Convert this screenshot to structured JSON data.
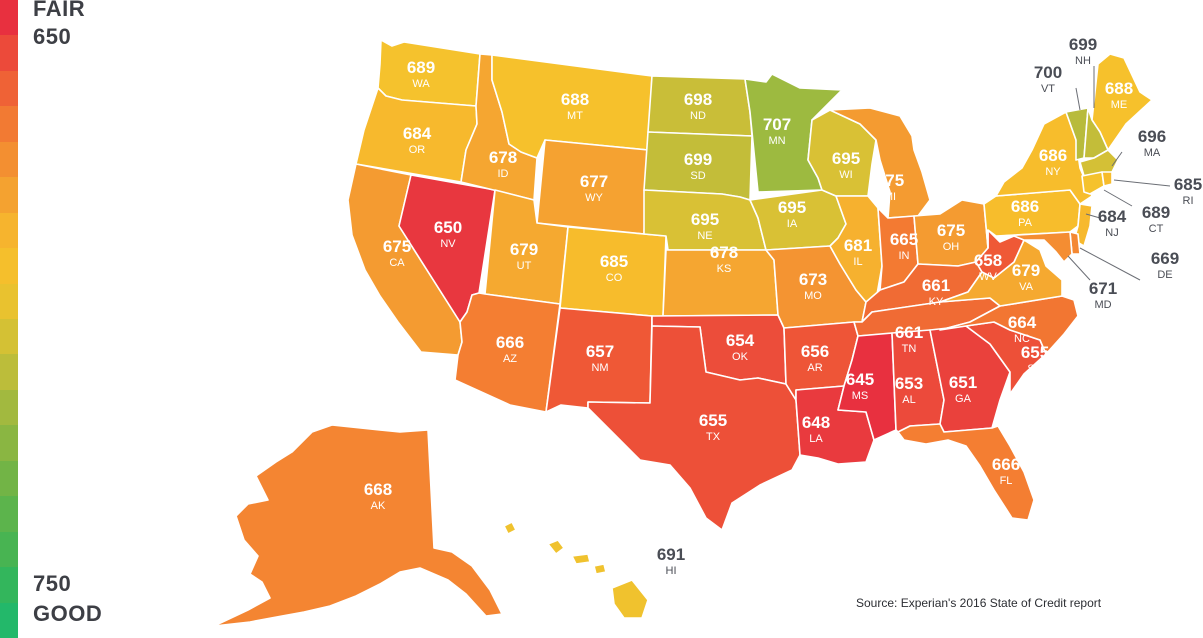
{
  "legend": {
    "top_word": "FAIR",
    "top_value": "650",
    "bottom_value": "750",
    "bottom_word": "GOOD",
    "gradient_colors": [
      "#e8303f",
      "#ec4a3a",
      "#ef6236",
      "#f27a33",
      "#f38f31",
      "#f4a230",
      "#f6b42e",
      "#f5bf2c",
      "#e9c22f",
      "#d4c134",
      "#bcbd3a",
      "#a2b93f",
      "#8ab642",
      "#72b446",
      "#5cb44c",
      "#48b452",
      "#33b65c",
      "#23b86a"
    ]
  },
  "source": "Source: Experian's 2016 State of Credit report",
  "colors": {
    "v645": "#e8303f",
    "v648": "#e93a3e",
    "v650": "#e8373f",
    "v651": "#ea413c",
    "v653": "#ec4a3b",
    "v654": "#ec4d3a",
    "v655": "#ed5038",
    "v656": "#ee5537",
    "v657": "#ef5836",
    "v658": "#ef5936",
    "v661": "#f06b34",
    "v664": "#f27632",
    "v665": "#f37a32",
    "v666": "#f47e32",
    "v668": "#f48532",
    "v669": "#f48832",
    "v671": "#f48d32",
    "v673": "#f49432",
    "v675": "#f49b31",
    "v677": "#f5a231",
    "v678": "#f5a631",
    "v679": "#f5a930",
    "v681": "#f6b12f",
    "v684": "#f7b92d",
    "v685": "#f7bc2c",
    "v686": "#f7bd2c",
    "v688": "#f6c12c",
    "v689": "#f5c22d",
    "v691": "#f0c22e",
    "v695": "#d9c135",
    "v696": "#d4c036",
    "v698": "#c9be38",
    "v699": "#c3bd39",
    "v700": "#b8bb3c",
    "v707": "#9dba40"
  },
  "states": [
    {
      "abbr": "WA",
      "score": "689"
    },
    {
      "abbr": "OR",
      "score": "684"
    },
    {
      "abbr": "CA",
      "score": "675"
    },
    {
      "abbr": "NV",
      "score": "650"
    },
    {
      "abbr": "ID",
      "score": "678"
    },
    {
      "abbr": "MT",
      "score": "688"
    },
    {
      "abbr": "WY",
      "score": "677"
    },
    {
      "abbr": "UT",
      "score": "679"
    },
    {
      "abbr": "AZ",
      "score": "666"
    },
    {
      "abbr": "CO",
      "score": "685"
    },
    {
      "abbr": "NM",
      "score": "657"
    },
    {
      "abbr": "ND",
      "score": "698"
    },
    {
      "abbr": "SD",
      "score": "699"
    },
    {
      "abbr": "NE",
      "score": "695"
    },
    {
      "abbr": "KS",
      "score": "678"
    },
    {
      "abbr": "OK",
      "score": "654"
    },
    {
      "abbr": "TX",
      "score": "655"
    },
    {
      "abbr": "MN",
      "score": "707"
    },
    {
      "abbr": "IA",
      "score": "695"
    },
    {
      "abbr": "MO",
      "score": "673"
    },
    {
      "abbr": "AR",
      "score": "656"
    },
    {
      "abbr": "LA",
      "score": "648"
    },
    {
      "abbr": "WI",
      "score": "695"
    },
    {
      "abbr": "IL",
      "score": "681"
    },
    {
      "abbr": "MI",
      "score": "675"
    },
    {
      "abbr": "IN",
      "score": "665"
    },
    {
      "abbr": "OH",
      "score": "675"
    },
    {
      "abbr": "KY",
      "score": "661"
    },
    {
      "abbr": "TN",
      "score": "661"
    },
    {
      "abbr": "MS",
      "score": "645"
    },
    {
      "abbr": "AL",
      "score": "653"
    },
    {
      "abbr": "GA",
      "score": "651"
    },
    {
      "abbr": "FL",
      "score": "666"
    },
    {
      "abbr": "SC",
      "score": "655"
    },
    {
      "abbr": "NC",
      "score": "664"
    },
    {
      "abbr": "VA",
      "score": "679"
    },
    {
      "abbr": "WV",
      "score": "658"
    },
    {
      "abbr": "PA",
      "score": "686"
    },
    {
      "abbr": "NY",
      "score": "686"
    },
    {
      "abbr": "ME",
      "score": "688"
    },
    {
      "abbr": "VT",
      "score": "700"
    },
    {
      "abbr": "NH",
      "score": "699"
    },
    {
      "abbr": "MA",
      "score": "696"
    },
    {
      "abbr": "RI",
      "score": "685"
    },
    {
      "abbr": "CT",
      "score": "689"
    },
    {
      "abbr": "NJ",
      "score": "684"
    },
    {
      "abbr": "DE",
      "score": "669"
    },
    {
      "abbr": "MD",
      "score": "671"
    },
    {
      "abbr": "AK",
      "score": "668"
    },
    {
      "abbr": "HI",
      "score": "691"
    }
  ]
}
